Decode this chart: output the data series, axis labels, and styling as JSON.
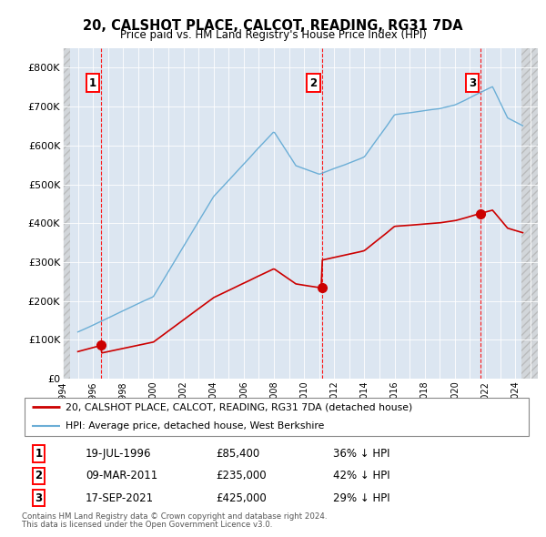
{
  "title": "20, CALSHOT PLACE, CALCOT, READING, RG31 7DA",
  "subtitle": "Price paid vs. HM Land Registry's House Price Index (HPI)",
  "legend_line1": "20, CALSHOT PLACE, CALCOT, READING, RG31 7DA (detached house)",
  "legend_line2": "HPI: Average price, detached house, West Berkshire",
  "footnote1": "Contains HM Land Registry data © Crown copyright and database right 2024.",
  "footnote2": "This data is licensed under the Open Government Licence v3.0.",
  "transactions": [
    {
      "num": 1,
      "date": "19-JUL-1996",
      "price": 85400,
      "pct": "36% ↓ HPI",
      "x_year": 1996.54
    },
    {
      "num": 2,
      "date": "09-MAR-2011",
      "price": 235000,
      "pct": "42% ↓ HPI",
      "x_year": 2011.18
    },
    {
      "num": 3,
      "date": "17-SEP-2021",
      "price": 425000,
      "pct": "29% ↓ HPI",
      "x_year": 2021.71
    }
  ],
  "hpi_color": "#6baed6",
  "price_color": "#cc0000",
  "background_plot": "#dce6f1",
  "ylim": [
    0,
    850000
  ],
  "xlim_left": 1994.0,
  "xlim_right": 2025.5,
  "data_start": 1994.5,
  "data_end": 2024.4,
  "xticks": [
    1994,
    1995,
    1996,
    1997,
    1998,
    1999,
    2000,
    2001,
    2002,
    2003,
    2004,
    2005,
    2006,
    2007,
    2008,
    2009,
    2010,
    2011,
    2012,
    2013,
    2014,
    2015,
    2016,
    2017,
    2018,
    2019,
    2020,
    2021,
    2022,
    2023,
    2024,
    2025
  ],
  "ytick_values": [
    0,
    100000,
    200000,
    300000,
    400000,
    500000,
    600000,
    700000,
    800000
  ],
  "ytick_labels": [
    "£0",
    "£100K",
    "£200K",
    "£300K",
    "£400K",
    "£500K",
    "£600K",
    "£700K",
    "£800K"
  ],
  "row_data": [
    {
      "num": "1",
      "date": "19-JUL-1996",
      "price": "£85,400",
      "pct": "36% ↓ HPI"
    },
    {
      "num": "2",
      "date": "09-MAR-2011",
      "price": "£235,000",
      "pct": "42% ↓ HPI"
    },
    {
      "num": "3",
      "date": "17-SEP-2021",
      "price": "£425,000",
      "pct": "29% ↓ HPI"
    }
  ]
}
